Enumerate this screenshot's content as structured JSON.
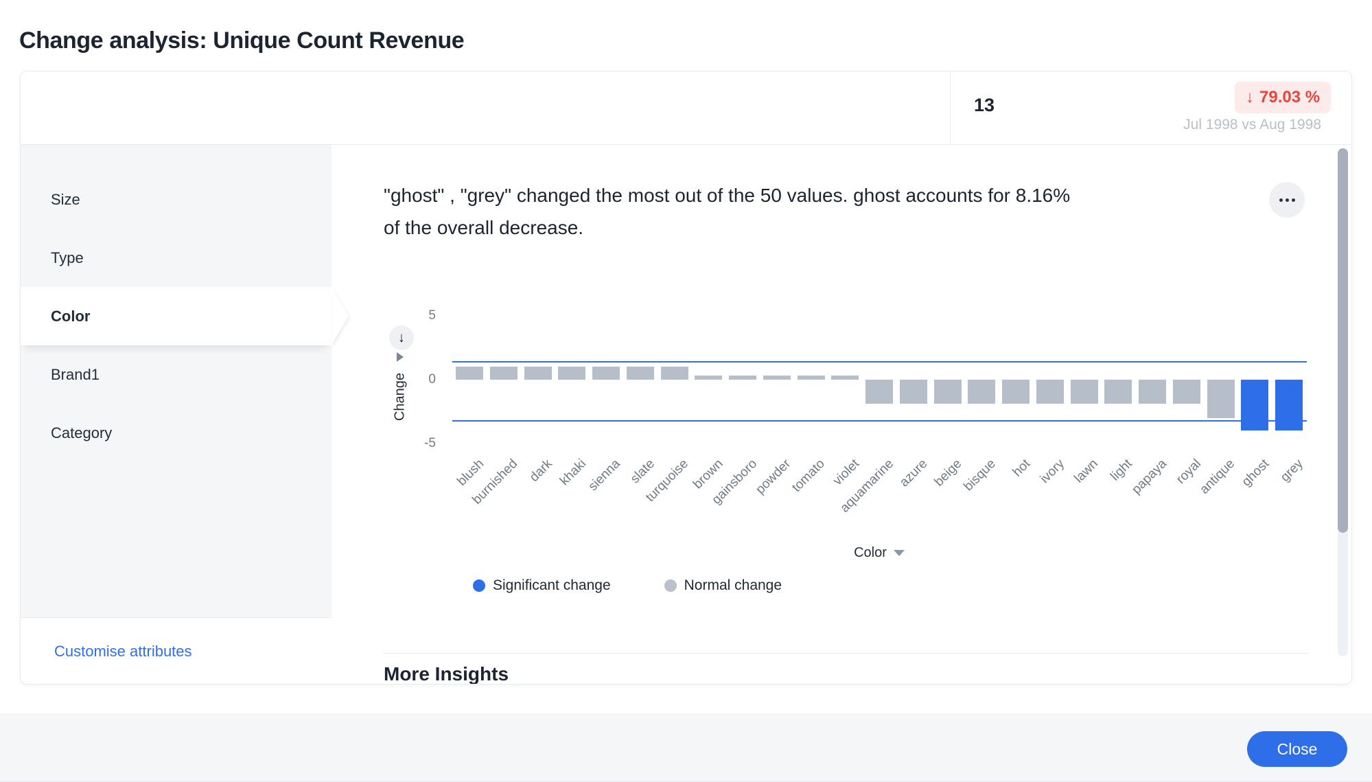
{
  "page": {
    "title": "Change analysis: Unique Count Revenue"
  },
  "summary": {
    "value": "13",
    "change_icon": "↓",
    "change_text": "79.03 %",
    "comparison": "Jul 1998 vs Aug 1998"
  },
  "sidebar": {
    "items": [
      {
        "label": "Size",
        "selected": false
      },
      {
        "label": "Type",
        "selected": false
      },
      {
        "label": "Color",
        "selected": true
      },
      {
        "label": "Brand1",
        "selected": false
      },
      {
        "label": "Category",
        "selected": false
      }
    ],
    "footer_link": "Customise attributes"
  },
  "insight": {
    "line1": "\"ghost\" , \"grey\" changed the most out of the 50 values. ghost accounts for 8.16%",
    "line2": "of the overall decrease."
  },
  "chart_data": {
    "type": "bar",
    "title": "",
    "xlabel": "Color",
    "ylabel": "Change",
    "ylim": [
      -5,
      5
    ],
    "yticks": [
      5,
      0,
      -5
    ],
    "grid": false,
    "legend_position": "bottom-left",
    "categories": [
      "blush",
      "burnished",
      "dark",
      "khaki",
      "sienna",
      "slate",
      "turquoise",
      "brown",
      "gainsboro",
      "powder",
      "tomato",
      "violet",
      "aquamarine",
      "azure",
      "beige",
      "bisque",
      "hot",
      "ivory",
      "lawn",
      "light",
      "papaya",
      "royal",
      "antique",
      "ghost",
      "grey"
    ],
    "values": [
      1.0,
      1.0,
      1.0,
      1.0,
      1.0,
      1.0,
      1.0,
      0.3,
      0.3,
      0.3,
      0.3,
      0.3,
      -1.9,
      -1.9,
      -1.9,
      -1.9,
      -1.9,
      -1.9,
      -1.9,
      -1.9,
      -1.9,
      -1.9,
      -3.0,
      -4.0,
      -4.0
    ],
    "significant": [
      "ghost",
      "grey"
    ],
    "thresholds": {
      "upper": 1.4,
      "lower": -3.2
    },
    "colors": {
      "significant": "#2e6fe9",
      "normal": "#b6bec9",
      "threshold": "#2e6fe9"
    },
    "legend": [
      {
        "label": "Significant change",
        "color": "#2e6fe9"
      },
      {
        "label": "Normal change",
        "color": "#b9c1cb"
      }
    ]
  },
  "more_insights": {
    "title": "More Insights"
  },
  "footer": {
    "close_label": "Close"
  }
}
